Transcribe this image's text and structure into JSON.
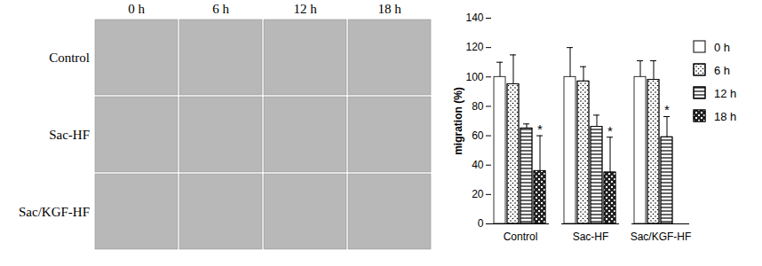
{
  "image_panel": {
    "columns": [
      "0 h",
      "6 h",
      "12 h",
      "18 h"
    ],
    "rows": [
      "Control",
      "Sac-HF",
      "Sac/KGF-HF"
    ]
  },
  "chart_data": {
    "type": "bar",
    "categories": [
      "Control",
      "Sac-HF",
      "Sac/KGF-HF"
    ],
    "y_label": "migration (%)",
    "ylim": [
      0,
      140
    ],
    "yticks": [
      0,
      20,
      40,
      60,
      80,
      100,
      120,
      140
    ],
    "grid": false,
    "legend": "right",
    "series": [
      {
        "name": "0 h",
        "color": "#ffffff",
        "values": [
          100,
          100,
          100
        ],
        "errors": [
          10,
          20,
          11
        ],
        "annotations": [
          null,
          null,
          null
        ]
      },
      {
        "name": "6 h",
        "color": "#ffffff",
        "values": [
          95,
          97,
          98
        ],
        "errors": [
          20,
          10,
          13
        ],
        "annotations": [
          null,
          null,
          null
        ]
      },
      {
        "name": "12 h",
        "color": "#ffffff",
        "values": [
          65,
          66,
          59
        ],
        "errors": [
          3,
          8,
          14
        ],
        "annotations": [
          null,
          null,
          "*"
        ]
      },
      {
        "name": "18 h",
        "color": "#ffffff",
        "values": [
          36,
          35,
          null
        ],
        "errors": [
          24,
          24,
          null
        ],
        "annotations": [
          "*",
          "*",
          null
        ]
      }
    ]
  }
}
